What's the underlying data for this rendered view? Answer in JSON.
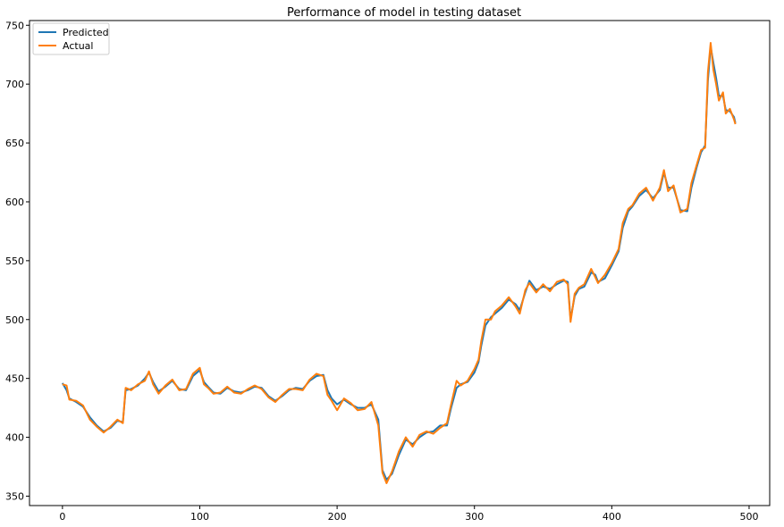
{
  "chart_data": {
    "type": "line",
    "title": "Performance of model in testing dataset",
    "xlabel": "",
    "ylabel": "",
    "xlim": [
      -24,
      515
    ],
    "ylim": [
      342,
      754
    ],
    "xticks": [
      0,
      100,
      200,
      300,
      400,
      500
    ],
    "yticks": [
      350,
      400,
      450,
      500,
      550,
      600,
      650,
      700,
      750
    ],
    "grid": false,
    "legend": "top-left",
    "colors": {
      "predicted": "#1f77b4",
      "actual": "#ff7f0e"
    },
    "series": [
      {
        "name": "Predicted",
        "points": [
          [
            0,
            446
          ],
          [
            3,
            440
          ],
          [
            5,
            433
          ],
          [
            10,
            430
          ],
          [
            15,
            426
          ],
          [
            20,
            417
          ],
          [
            25,
            410
          ],
          [
            30,
            405
          ],
          [
            35,
            408
          ],
          [
            40,
            414
          ],
          [
            44,
            413
          ],
          [
            46,
            440
          ],
          [
            50,
            441
          ],
          [
            55,
            444
          ],
          [
            60,
            450
          ],
          [
            63,
            455
          ],
          [
            66,
            447
          ],
          [
            70,
            439
          ],
          [
            75,
            443
          ],
          [
            80,
            448
          ],
          [
            85,
            441
          ],
          [
            90,
            440
          ],
          [
            95,
            452
          ],
          [
            100,
            457
          ],
          [
            103,
            447
          ],
          [
            106,
            443
          ],
          [
            110,
            438
          ],
          [
            115,
            437
          ],
          [
            120,
            442
          ],
          [
            125,
            439
          ],
          [
            130,
            438
          ],
          [
            135,
            440
          ],
          [
            140,
            443
          ],
          [
            145,
            442
          ],
          [
            150,
            435
          ],
          [
            155,
            431
          ],
          [
            160,
            435
          ],
          [
            165,
            440
          ],
          [
            170,
            442
          ],
          [
            175,
            441
          ],
          [
            180,
            448
          ],
          [
            185,
            452
          ],
          [
            190,
            453
          ],
          [
            193,
            440
          ],
          [
            196,
            433
          ],
          [
            200,
            428
          ],
          [
            205,
            432
          ],
          [
            210,
            428
          ],
          [
            215,
            425
          ],
          [
            220,
            425
          ],
          [
            225,
            428
          ],
          [
            230,
            415
          ],
          [
            233,
            372
          ],
          [
            236,
            364
          ],
          [
            240,
            369
          ],
          [
            245,
            385
          ],
          [
            250,
            398
          ],
          [
            255,
            394
          ],
          [
            260,
            400
          ],
          [
            265,
            404
          ],
          [
            270,
            405
          ],
          [
            275,
            410
          ],
          [
            280,
            410
          ],
          [
            283,
            425
          ],
          [
            287,
            442
          ],
          [
            290,
            445
          ],
          [
            295,
            447
          ],
          [
            300,
            455
          ],
          [
            303,
            464
          ],
          [
            305,
            478
          ],
          [
            308,
            495
          ],
          [
            312,
            502
          ],
          [
            315,
            505
          ],
          [
            320,
            510
          ],
          [
            325,
            517
          ],
          [
            330,
            513
          ],
          [
            333,
            508
          ],
          [
            337,
            523
          ],
          [
            340,
            533
          ],
          [
            345,
            525
          ],
          [
            350,
            528
          ],
          [
            355,
            526
          ],
          [
            360,
            530
          ],
          [
            365,
            533
          ],
          [
            368,
            532
          ],
          [
            370,
            500
          ],
          [
            373,
            520
          ],
          [
            376,
            526
          ],
          [
            380,
            528
          ],
          [
            385,
            540
          ],
          [
            388,
            538
          ],
          [
            390,
            532
          ],
          [
            395,
            535
          ],
          [
            400,
            546
          ],
          [
            405,
            558
          ],
          [
            408,
            578
          ],
          [
            412,
            592
          ],
          [
            415,
            596
          ],
          [
            420,
            605
          ],
          [
            425,
            610
          ],
          [
            430,
            603
          ],
          [
            435,
            610
          ],
          [
            438,
            625
          ],
          [
            441,
            612
          ],
          [
            445,
            612
          ],
          [
            450,
            593
          ],
          [
            455,
            592
          ],
          [
            458,
            612
          ],
          [
            462,
            630
          ],
          [
            465,
            642
          ],
          [
            468,
            648
          ],
          [
            470,
            703
          ],
          [
            472,
            732
          ],
          [
            474,
            718
          ],
          [
            476,
            705
          ],
          [
            478,
            690
          ],
          [
            481,
            690
          ],
          [
            483,
            678
          ],
          [
            486,
            677
          ],
          [
            489,
            672
          ],
          [
            490,
            667
          ]
        ]
      },
      {
        "name": "Actual",
        "points": [
          [
            0,
            445
          ],
          [
            3,
            444
          ],
          [
            5,
            432
          ],
          [
            10,
            431
          ],
          [
            15,
            427
          ],
          [
            20,
            415
          ],
          [
            25,
            409
          ],
          [
            30,
            404
          ],
          [
            35,
            409
          ],
          [
            40,
            415
          ],
          [
            44,
            412
          ],
          [
            46,
            442
          ],
          [
            50,
            440
          ],
          [
            55,
            445
          ],
          [
            60,
            448
          ],
          [
            63,
            456
          ],
          [
            66,
            445
          ],
          [
            70,
            437
          ],
          [
            75,
            444
          ],
          [
            80,
            449
          ],
          [
            85,
            440
          ],
          [
            90,
            441
          ],
          [
            95,
            454
          ],
          [
            100,
            459
          ],
          [
            103,
            445
          ],
          [
            106,
            442
          ],
          [
            110,
            437
          ],
          [
            115,
            438
          ],
          [
            120,
            443
          ],
          [
            125,
            438
          ],
          [
            130,
            437
          ],
          [
            135,
            441
          ],
          [
            140,
            444
          ],
          [
            145,
            441
          ],
          [
            150,
            434
          ],
          [
            155,
            430
          ],
          [
            160,
            436
          ],
          [
            165,
            441
          ],
          [
            170,
            441
          ],
          [
            175,
            440
          ],
          [
            180,
            449
          ],
          [
            185,
            454
          ],
          [
            190,
            452
          ],
          [
            193,
            436
          ],
          [
            196,
            431
          ],
          [
            200,
            423
          ],
          [
            205,
            433
          ],
          [
            210,
            429
          ],
          [
            215,
            423
          ],
          [
            220,
            424
          ],
          [
            225,
            430
          ],
          [
            230,
            410
          ],
          [
            233,
            370
          ],
          [
            236,
            361
          ],
          [
            240,
            371
          ],
          [
            245,
            388
          ],
          [
            250,
            400
          ],
          [
            255,
            392
          ],
          [
            260,
            402
          ],
          [
            265,
            405
          ],
          [
            270,
            403
          ],
          [
            275,
            408
          ],
          [
            280,
            412
          ],
          [
            283,
            428
          ],
          [
            287,
            448
          ],
          [
            290,
            444
          ],
          [
            295,
            448
          ],
          [
            300,
            458
          ],
          [
            303,
            466
          ],
          [
            305,
            482
          ],
          [
            308,
            500
          ],
          [
            312,
            500
          ],
          [
            315,
            507
          ],
          [
            320,
            512
          ],
          [
            325,
            519
          ],
          [
            330,
            511
          ],
          [
            333,
            505
          ],
          [
            337,
            525
          ],
          [
            340,
            531
          ],
          [
            345,
            523
          ],
          [
            350,
            530
          ],
          [
            355,
            524
          ],
          [
            360,
            532
          ],
          [
            365,
            534
          ],
          [
            368,
            530
          ],
          [
            370,
            498
          ],
          [
            373,
            522
          ],
          [
            376,
            527
          ],
          [
            380,
            530
          ],
          [
            385,
            543
          ],
          [
            388,
            536
          ],
          [
            390,
            531
          ],
          [
            395,
            538
          ],
          [
            400,
            548
          ],
          [
            405,
            560
          ],
          [
            408,
            582
          ],
          [
            412,
            594
          ],
          [
            415,
            597
          ],
          [
            420,
            607
          ],
          [
            425,
            612
          ],
          [
            430,
            601
          ],
          [
            435,
            612
          ],
          [
            438,
            627
          ],
          [
            441,
            609
          ],
          [
            445,
            614
          ],
          [
            450,
            591
          ],
          [
            455,
            594
          ],
          [
            458,
            616
          ],
          [
            462,
            632
          ],
          [
            465,
            644
          ],
          [
            468,
            646
          ],
          [
            470,
            710
          ],
          [
            472,
            735
          ],
          [
            474,
            712
          ],
          [
            476,
            700
          ],
          [
            478,
            686
          ],
          [
            481,
            693
          ],
          [
            483,
            675
          ],
          [
            486,
            679
          ],
          [
            489,
            670
          ],
          [
            490,
            666
          ]
        ]
      }
    ]
  }
}
